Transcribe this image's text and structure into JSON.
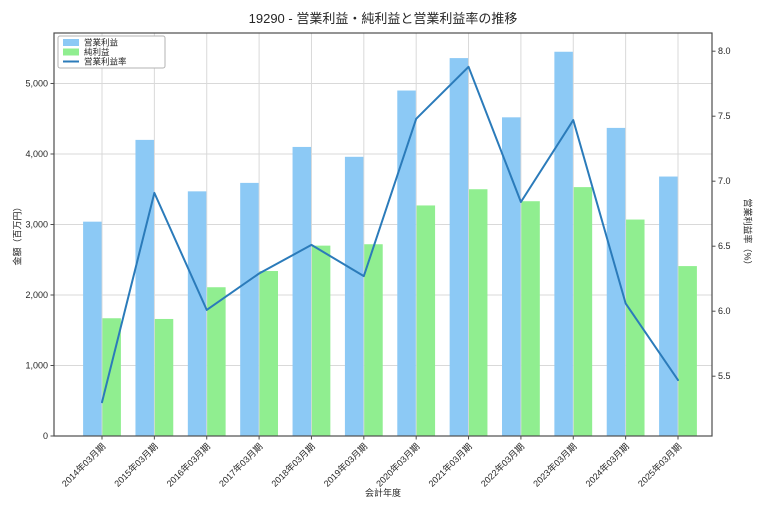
{
  "chart_data": {
    "type": "bar",
    "title": "19290 - 営業利益・純利益と営業利益率の推移",
    "xlabel": "会計年度",
    "ylabel_left": "金額（百万円）",
    "ylabel_right": "営業利益率（%）",
    "categories": [
      "2014年03月期",
      "2015年03月期",
      "2016年03月期",
      "2017年03月期",
      "2018年03月期",
      "2019年03月期",
      "2020年03月期",
      "2021年03月期",
      "2022年03月期",
      "2023年03月期",
      "2024年03月期",
      "2025年03月期"
    ],
    "series": [
      {
        "name": "営業利益",
        "type": "bar",
        "axis": "left",
        "color": "#8CC9F5",
        "values": [
          3040,
          4200,
          3470,
          3590,
          4100,
          3960,
          4900,
          5360,
          4520,
          5450,
          4370,
          3680
        ]
      },
      {
        "name": "純利益",
        "type": "bar",
        "axis": "left",
        "color": "#90EE90",
        "values": [
          1670,
          1660,
          2110,
          2340,
          2700,
          2720,
          3270,
          3500,
          3330,
          3530,
          3070,
          2410
        ]
      },
      {
        "name": "営業利益率",
        "type": "line",
        "axis": "right",
        "color": "#2B7BBA",
        "values": [
          5.3,
          6.91,
          6.01,
          6.29,
          6.51,
          6.27,
          7.48,
          7.88,
          6.84,
          7.47,
          6.06,
          5.47
        ]
      }
    ],
    "yticks_left": [
      0,
      1000,
      2000,
      3000,
      4000,
      5000
    ],
    "yticks_right": [
      5.5,
      6.0,
      6.5,
      7.0,
      7.5,
      8.0
    ],
    "ylim_left": [
      0,
      5716
    ],
    "ylim_right": [
      5.04,
      8.14
    ],
    "grid": true,
    "legend_position": "upper-left",
    "grid_color": "#d9d9d9",
    "spine_color": "#4d4d4d",
    "text_color": "#262626",
    "legend_border_color": "#b3b3b3"
  }
}
